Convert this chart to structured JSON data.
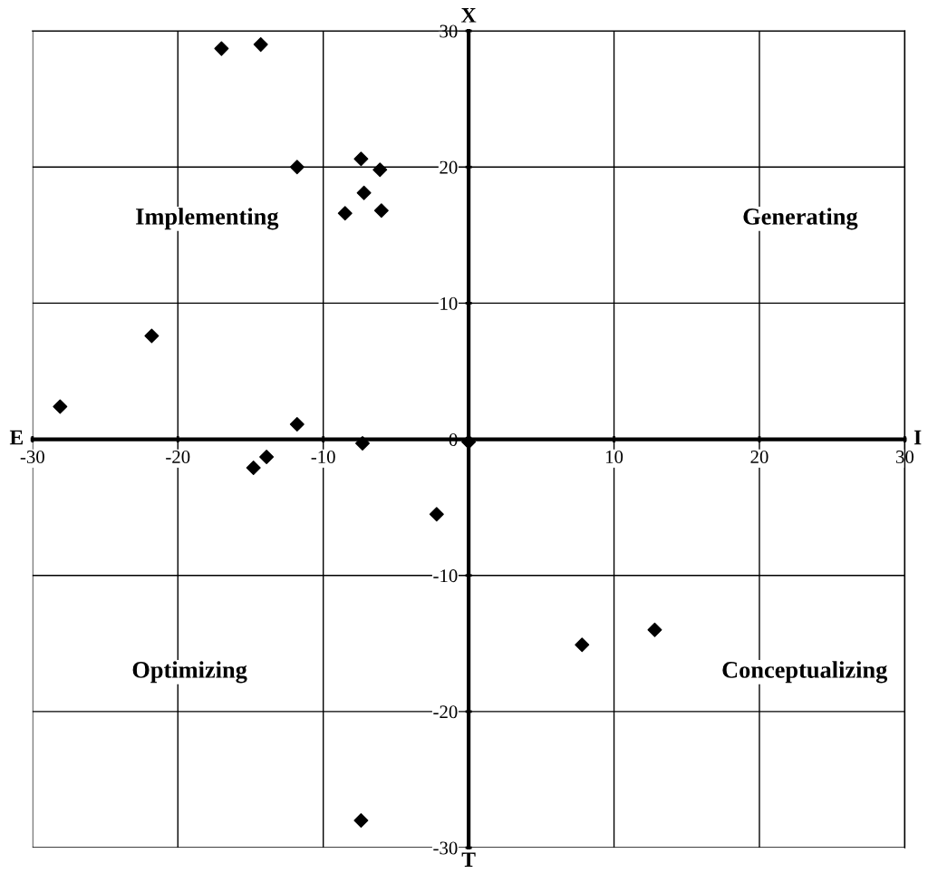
{
  "chart_data": {
    "type": "scatter",
    "x": [
      -17.0,
      -14.3,
      -11.8,
      -7.4,
      -6.1,
      -7.2,
      -8.5,
      -6.0,
      -21.8,
      -28.1,
      -11.8,
      -7.3,
      -14.8,
      -13.9,
      0.0,
      -2.2,
      7.8,
      12.8,
      -7.4
    ],
    "values": [
      28.7,
      29.0,
      20.0,
      20.6,
      19.8,
      18.1,
      16.6,
      16.8,
      7.6,
      2.4,
      1.1,
      -0.3,
      -2.1,
      -1.3,
      -0.2,
      -5.5,
      -15.1,
      -14.0,
      -28.0
    ],
    "color": "#000000",
    "marker": "diamond",
    "xlim": [
      -30,
      30
    ],
    "ylim": [
      -30,
      30
    ],
    "xticks": [
      -30,
      -20,
      -10,
      {
        "value": 0,
        "label": null
      },
      10,
      20,
      30
    ],
    "yticks": [
      -30,
      -20,
      -10,
      0,
      10,
      20,
      30
    ],
    "grid": true,
    "legend": false,
    "annotations": [
      "E",
      "I",
      "X",
      "T",
      "Implementing",
      "Generating",
      "Optimizing",
      "Conceptualizing"
    ]
  }
}
